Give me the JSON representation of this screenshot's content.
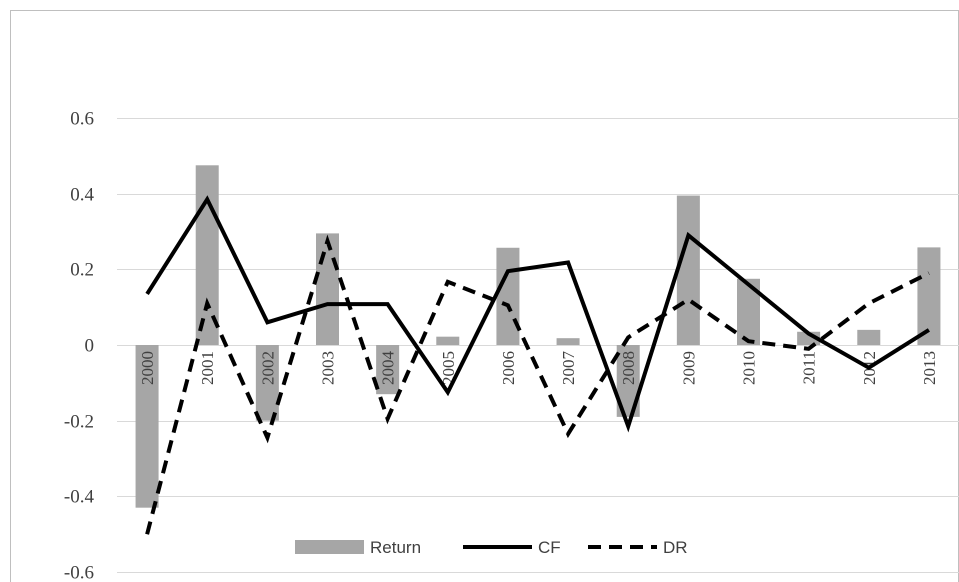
{
  "chart_data": {
    "type": "bar+line",
    "title": "",
    "xlabel": "",
    "ylabel": "",
    "categories": [
      "2000",
      "2001",
      "2002",
      "2003",
      "2004",
      "2005",
      "2006",
      "2007",
      "2008",
      "2009",
      "2010",
      "2011",
      "2012",
      "2013"
    ],
    "ylim": [
      -0.6,
      0.6
    ],
    "yticks": [
      "0.6",
      "0.4",
      "0.2",
      "0",
      "-0.2",
      "-0.4",
      "-0.6"
    ],
    "ytick_values": [
      0.6,
      0.4,
      0.2,
      0,
      -0.2,
      -0.4,
      -0.6
    ],
    "grid": true,
    "legend_position": "bottom",
    "series": [
      {
        "name": "Return",
        "kind": "bar",
        "color": "#a6a6a6",
        "values": [
          -0.43,
          0.475,
          -0.2,
          0.295,
          -0.13,
          0.022,
          0.257,
          0.018,
          -0.19,
          0.395,
          0.175,
          0.035,
          0.04,
          0.258
        ]
      },
      {
        "name": "CF",
        "kind": "line",
        "style": "solid",
        "color": "#000000",
        "values": [
          0.135,
          0.385,
          0.06,
          0.108,
          0.108,
          -0.125,
          0.195,
          0.218,
          -0.215,
          0.29,
          0.16,
          0.03,
          -0.06,
          0.04
        ]
      },
      {
        "name": "DR",
        "kind": "line",
        "style": "dashed",
        "color": "#000000",
        "values": [
          -0.5,
          0.11,
          -0.245,
          0.275,
          -0.195,
          0.167,
          0.105,
          -0.235,
          0.02,
          0.12,
          0.01,
          -0.01,
          0.11,
          0.19
        ]
      }
    ]
  }
}
